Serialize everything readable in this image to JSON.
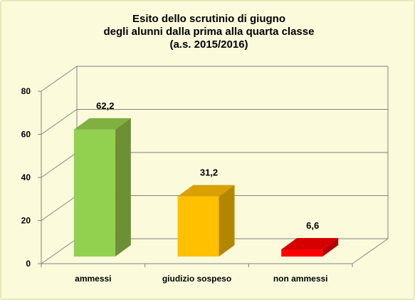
{
  "chart_data": {
    "type": "bar",
    "title_lines": [
      "Esito dello scrutinio di giugno",
      "degli alunni dalla prima alla quarta classe",
      "(a.s. 2015/2016)"
    ],
    "categories": [
      "ammessi",
      "giudizio sospeso",
      "non ammessi"
    ],
    "values": [
      62.2,
      31.2,
      6.6
    ],
    "value_labels": [
      "62,2",
      "31,2",
      "6,6"
    ],
    "ylim": [
      0,
      80
    ],
    "yticks": [
      0,
      20,
      40,
      60,
      80
    ],
    "grid": true,
    "legend": "none",
    "style": "3d-column",
    "colors": [
      {
        "front": "#92d050",
        "side": "#6d8f35",
        "top": "#7fb040"
      },
      {
        "front": "#ffc000",
        "side": "#b38600",
        "top": "#d9a000"
      },
      {
        "front": "#ff0000",
        "side": "#b30000",
        "top": "#d60000"
      }
    ],
    "background": "#fbfbdc",
    "gridline_color": "#808080"
  }
}
